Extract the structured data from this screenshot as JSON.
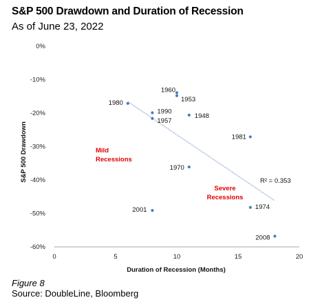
{
  "title": "S&P 500 Drawdown and Duration of Recession",
  "subtitle": "As of June 23, 2022",
  "figure_label": "Figure 8",
  "source": "Source: DoubleLine, Bloomberg",
  "colors": {
    "points": "#4a7ebb",
    "trend": "#4a7ebb",
    "annotation": "#e00000"
  },
  "chart_data": {
    "type": "scatter",
    "xlabel": "Duration of Recession (Months)",
    "ylabel": "S&P 500 Drawdown",
    "xlim": [
      0,
      20
    ],
    "ylim": [
      -60,
      0
    ],
    "x_ticks": [
      0,
      5,
      10,
      15,
      20
    ],
    "y_ticks": [
      0,
      -10,
      -20,
      -30,
      -40,
      -50,
      -60
    ],
    "y_tick_labels": [
      "0%",
      "-10%",
      "-20%",
      "-30%",
      "-40%",
      "-50%",
      "-60%"
    ],
    "grid": false,
    "points": [
      {
        "label": "1960",
        "x": 10,
        "y": -13.9
      },
      {
        "label": "1953",
        "x": 10,
        "y": -14.8
      },
      {
        "label": "1980",
        "x": 6,
        "y": -17.1
      },
      {
        "label": "1990",
        "x": 8,
        "y": -19.9
      },
      {
        "label": "1948",
        "x": 11,
        "y": -20.6
      },
      {
        "label": "1957",
        "x": 8,
        "y": -21.6
      },
      {
        "label": "1981",
        "x": 16,
        "y": -27.1
      },
      {
        "label": "1970",
        "x": 11,
        "y": -36.1
      },
      {
        "label": "1974",
        "x": 16,
        "y": -48.2
      },
      {
        "label": "2001",
        "x": 8,
        "y": -49.1
      },
      {
        "label": "2008",
        "x": 18,
        "y": -56.8
      }
    ],
    "trendline": {
      "x": [
        6,
        18
      ],
      "y": [
        -16.6,
        -46.2
      ],
      "r2_label": "R² = 0.353"
    },
    "annotations": [
      {
        "lines": [
          "Mild",
          "Recessions"
        ]
      },
      {
        "lines": [
          "Severe",
          "Recessions"
        ]
      }
    ]
  }
}
